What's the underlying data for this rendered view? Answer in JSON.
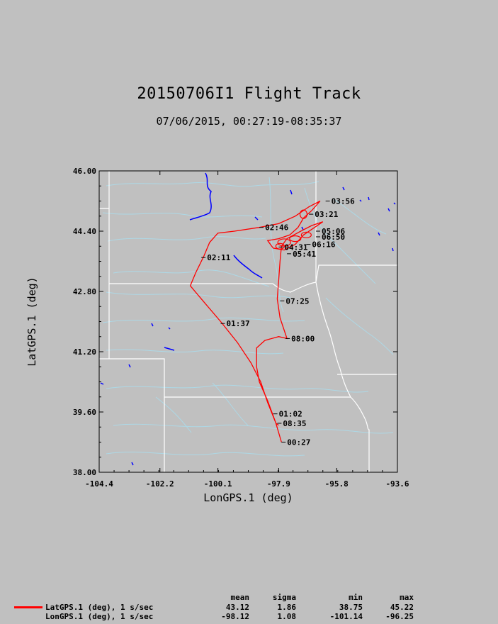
{
  "title": "20150706I1 Flight Track",
  "subtitle": "07/06/2015, 00:27:19-08:35:37",
  "chart_data": {
    "type": "line",
    "xlabel": "LonGPS.1 (deg)",
    "ylabel": "LatGPS.1 (deg)",
    "xlim": [
      -104.4,
      -93.6
    ],
    "ylim": [
      38.0,
      46.0
    ],
    "x_ticks": [
      "-104.4",
      "-102.2",
      "-100.1",
      "-97.9",
      "-95.8",
      "-93.6"
    ],
    "y_ticks": [
      "46.00",
      "44.40",
      "42.80",
      "41.20",
      "39.60",
      "38.00"
    ],
    "x_tick_values": [
      -104.4,
      -102.2,
      -100.1,
      -97.9,
      -95.8,
      -93.6
    ],
    "y_tick_values": [
      46.0,
      44.4,
      42.8,
      41.2,
      39.6,
      38.0
    ],
    "series": [
      {
        "color": "#ff0000",
        "points": [
          [
            -97.8,
            38.8
          ],
          [
            -98.0,
            39.3
          ],
          [
            -98.3,
            39.85
          ],
          [
            -98.55,
            40.4
          ],
          [
            -98.9,
            40.9
          ],
          [
            -99.4,
            41.45
          ],
          [
            -100.0,
            42.0
          ],
          [
            -100.7,
            42.6
          ],
          [
            -101.1,
            42.95
          ],
          [
            -100.9,
            43.3
          ],
          [
            -100.6,
            43.75
          ],
          [
            -100.4,
            44.1
          ],
          [
            -100.1,
            44.35
          ],
          [
            -99.5,
            44.4
          ],
          [
            -98.6,
            44.5
          ],
          [
            -97.9,
            44.6
          ],
          [
            -97.3,
            44.8
          ],
          [
            -96.8,
            45.05
          ],
          [
            -96.4,
            45.2
          ],
          [
            -96.7,
            44.95
          ],
          [
            -97.0,
            44.75
          ],
          [
            -97.2,
            44.5
          ],
          [
            -97.5,
            44.3
          ],
          [
            -97.9,
            44.2
          ],
          [
            -98.3,
            44.15
          ],
          [
            -98.1,
            43.95
          ],
          [
            -97.7,
            43.9
          ],
          [
            -97.3,
            44.05
          ],
          [
            -97.0,
            44.3
          ],
          [
            -96.6,
            44.5
          ],
          [
            -96.3,
            44.65
          ],
          [
            -96.7,
            44.55
          ],
          [
            -97.1,
            44.4
          ],
          [
            -97.6,
            44.2
          ],
          [
            -97.8,
            44.0
          ],
          [
            -97.85,
            43.6
          ],
          [
            -97.9,
            43.1
          ],
          [
            -97.95,
            42.6
          ],
          [
            -97.85,
            42.1
          ],
          [
            -97.6,
            41.55
          ],
          [
            -97.9,
            41.6
          ],
          [
            -98.4,
            41.5
          ],
          [
            -98.7,
            41.3
          ],
          [
            -98.7,
            40.8
          ],
          [
            -98.6,
            40.4
          ],
          [
            -98.3,
            39.9
          ],
          [
            -98.0,
            39.3
          ],
          [
            -97.9,
            39.25
          ]
        ]
      }
    ],
    "time_labels": [
      {
        "text": "00:27",
        "lon": -97.8,
        "lat": 38.8
      },
      {
        "text": "01:02",
        "lon": -98.1,
        "lat": 39.55
      },
      {
        "text": "08:35",
        "lon": -97.95,
        "lat": 39.3
      },
      {
        "text": "01:37",
        "lon": -100.0,
        "lat": 41.95
      },
      {
        "text": "08:00",
        "lon": -97.65,
        "lat": 41.55
      },
      {
        "text": "07:25",
        "lon": -97.85,
        "lat": 42.55
      },
      {
        "text": "02:11",
        "lon": -100.7,
        "lat": 43.7
      },
      {
        "text": "02:46",
        "lon": -98.6,
        "lat": 44.5
      },
      {
        "text": "03:21",
        "lon": -96.8,
        "lat": 44.85
      },
      {
        "text": "03:56",
        "lon": -96.2,
        "lat": 45.2
      },
      {
        "text": "05:06",
        "lon": -96.55,
        "lat": 44.4
      },
      {
        "text": "06:50",
        "lon": -96.55,
        "lat": 44.25
      },
      {
        "text": "06:16",
        "lon": -96.9,
        "lat": 44.05
      },
      {
        "text": "04:31",
        "lon": -97.9,
        "lat": 43.98
      },
      {
        "text": "05:41",
        "lon": -97.6,
        "lat": 43.8
      }
    ],
    "boundary_color": "#ffffff",
    "river_color": "#add8e6",
    "lake_color": "#0000ff"
  },
  "stats": {
    "headers": [
      "mean",
      "sigma",
      "min",
      "max"
    ],
    "rows": [
      {
        "name": "LatGPS.1 (deg), 1 s/sec",
        "mean": "43.12",
        "sigma": "1.86",
        "min": "38.75",
        "max": "45.22"
      },
      {
        "name": "LonGPS.1 (deg), 1 s/sec",
        "mean": "-98.12",
        "sigma": "1.08",
        "min": "-101.14",
        "max": "-96.25"
      }
    ]
  }
}
